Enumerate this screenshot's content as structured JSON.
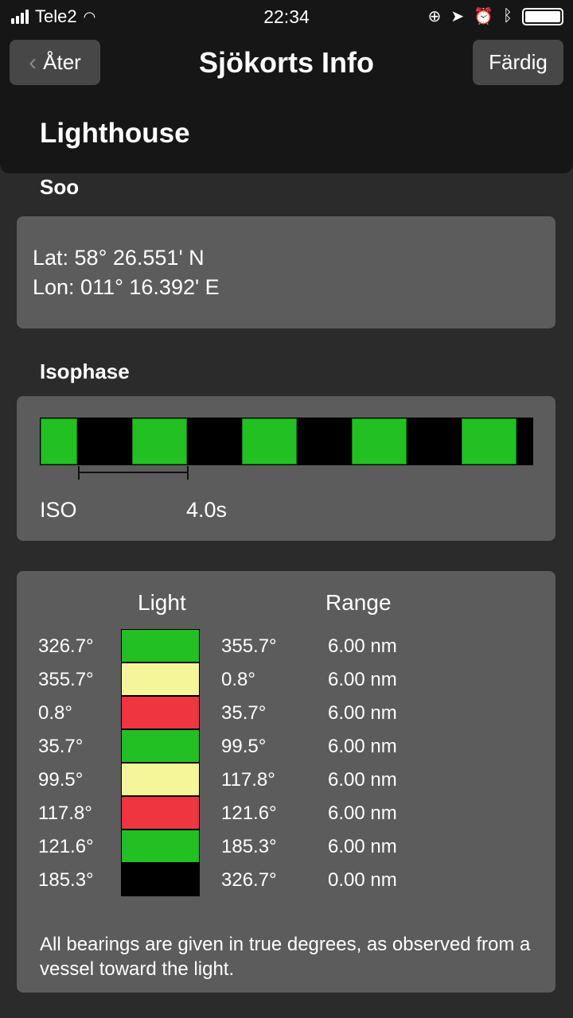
{
  "status_bar": {
    "carrier": "Tele2",
    "time": "22:34",
    "icons": [
      "signal-icon",
      "wifi-icon",
      "rotation-lock-icon",
      "location-icon",
      "alarm-icon",
      "bluetooth-icon",
      "battery-icon"
    ]
  },
  "nav": {
    "back_label": "Åter",
    "title": "Sjökorts Info",
    "done_label": "Färdig"
  },
  "object_type": "Lighthouse",
  "name": "Soo",
  "position": {
    "lat": "Lat: 58° 26.551' N",
    "lon": "Lon: 011° 16.392' E"
  },
  "phase": {
    "heading": "Isophase",
    "code": "ISO",
    "period": "4.0s",
    "color": "#22c022",
    "period_seconds": 4,
    "on_seconds": 2
  },
  "sectors": {
    "light_header": "Light",
    "range_header": "Range",
    "rows": [
      {
        "from": "326.7°",
        "to": "355.7°",
        "range": "6.00 nm",
        "color": "#22c022"
      },
      {
        "from": "355.7°",
        "to": "0.8°",
        "range": "6.00 nm",
        "color": "#f5f59a"
      },
      {
        "from": "0.8°",
        "to": "35.7°",
        "range": "6.00 nm",
        "color": "#ee3540"
      },
      {
        "from": "35.7°",
        "to": "99.5°",
        "range": "6.00 nm",
        "color": "#22c022"
      },
      {
        "from": "99.5°",
        "to": "117.8°",
        "range": "6.00 nm",
        "color": "#f5f59a"
      },
      {
        "from": "117.8°",
        "to": "121.6°",
        "range": "6.00 nm",
        "color": "#ee3540"
      },
      {
        "from": "121.6°",
        "to": "185.3°",
        "range": "6.00 nm",
        "color": "#22c022"
      },
      {
        "from": "185.3°",
        "to": "326.7°",
        "range": "0.00 nm",
        "color": "#000000"
      }
    ],
    "note": "All bearings are given in true degrees, as observed from a vessel toward the light."
  }
}
